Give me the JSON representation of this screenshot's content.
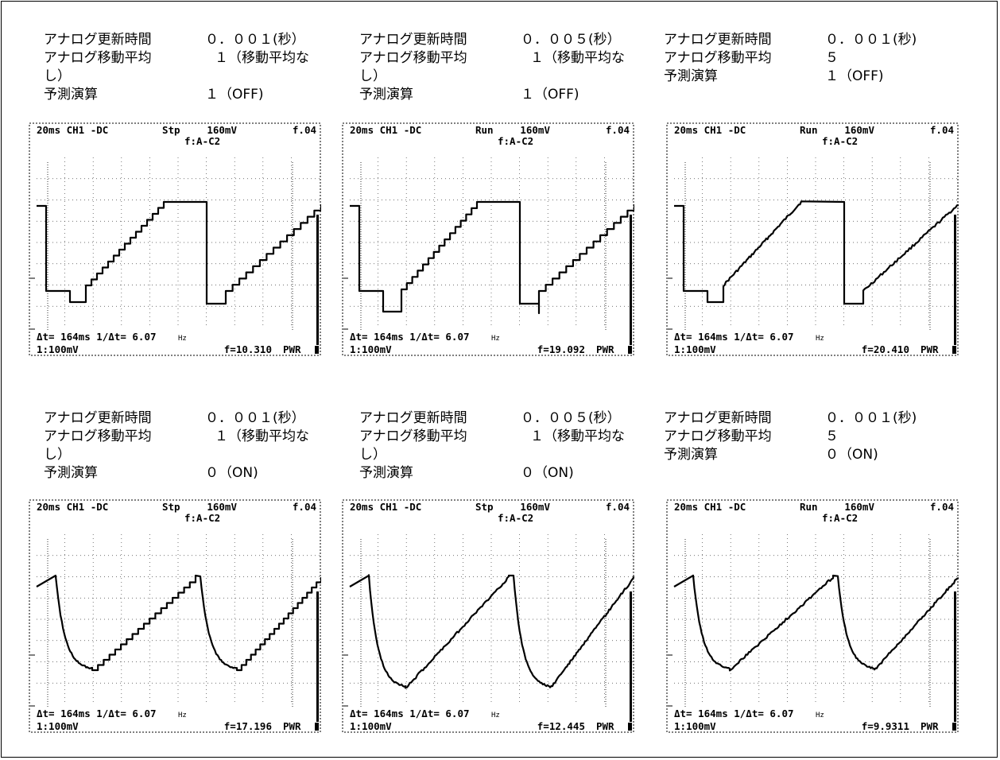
{
  "rows": [
    {
      "panels": [
        {
          "text": {
            "l1": "アナログ更新時間",
            "v1": "０．００１(秒）",
            "l2": "アナログ移動平均",
            "v2": "１（移動平均な",
            "l2b": "し）",
            "l3": "予測演算",
            "v3": "１（OFF)"
          },
          "scope": {
            "h1": "20ms CH1 -DC",
            "mode": "Stp",
            "volt": "160mV",
            "trig": "f.04",
            "h2": "f:A-C2",
            "meas": "Δt=  164ms 1/Δt= 6.07",
            "hz": "Hz",
            "ch": "1:100mV",
            "freq": "f=10.310",
            "pwr": "PWR"
          }
        },
        {
          "text": {
            "l1": "アナログ更新時間",
            "v1": "０．００５(秒）",
            "l2": "アナログ移動平均",
            "v2": "１（移動平均な",
            "l2b": "し）",
            "l3": "予測演算",
            "v3": "１（OFF)"
          },
          "scope": {
            "h1": "20ms CH1 -DC",
            "mode": "Run",
            "volt": "160mV",
            "trig": "f.04",
            "h2": "f:A-C2",
            "meas": "Δt=  164ms 1/Δt= 6.07",
            "hz": "Hz",
            "ch": "1:100mV",
            "freq": "f=19.092",
            "pwr": "PWR"
          }
        },
        {
          "text": {
            "l1": "アナログ更新時間",
            "v1": "０．００１(秒)",
            "l2": "アナログ移動平均",
            "v2": "５",
            "l2b": "",
            "l3": "予測演算",
            "v3": "１（OFF)"
          },
          "scope": {
            "h1": "20ms CH1 -DC",
            "mode": "Run",
            "volt": "160mV",
            "trig": "f.04",
            "h2": "f:A-C2",
            "meas": "Δt=  164ms 1/Δt= 6.07",
            "hz": "Hz",
            "ch": "1:100mV",
            "freq": "f=20.410",
            "pwr": "PWR"
          }
        }
      ]
    },
    {
      "panels": [
        {
          "text": {
            "l1": "アナログ更新時間",
            "v1": "０．００１(秒）",
            "l2": "アナログ移動平均",
            "v2": "１（移動平均な",
            "l2b": "し）",
            "l3": "予測演算",
            "v3": "０（ON)"
          },
          "scope": {
            "h1": "20ms CH1 -DC",
            "mode": "Stp",
            "volt": "160mV",
            "trig": "f.04",
            "h2": "f:A-C2",
            "meas": "Δt=  164ms 1/Δt= 6.07",
            "hz": "Hz",
            "ch": "1:100mV",
            "freq": "f=17.196",
            "pwr": "PWR"
          }
        },
        {
          "text": {
            "l1": "アナログ更新時間",
            "v1": "０．００５(秒）",
            "l2": "アナログ移動平均",
            "v2": "１（移動平均な",
            "l2b": "し）",
            "l3": "予測演算",
            "v3": "０（ON)"
          },
          "scope": {
            "h1": "20ms CH1 -DC",
            "mode": "Stp",
            "volt": "160mV",
            "trig": "f.04",
            "h2": "f:A-C2",
            "meas": "Δt=  164ms 1/Δt= 6.07",
            "hz": "Hz",
            "ch": "1:100mV",
            "freq": "f=12.445",
            "pwr": "PWR"
          }
        },
        {
          "text": {
            "l1": "アナログ更新時間",
            "v1": "０．００１(秒)",
            "l2": "アナログ移動平均",
            "v2": "５",
            "l2b": "",
            "l3": "予測演算",
            "v3": "０（ON)"
          },
          "scope": {
            "h1": "20ms CH1 -DC",
            "mode": "Run",
            "volt": "160mV",
            "trig": "f.04",
            "h2": "f:A-C2",
            "meas": "Δt=  164ms 1/Δt= 6.07",
            "hz": "Hz",
            "ch": "1:100mV",
            "freq": "f=9.9311",
            "pwr": "PWR"
          }
        }
      ]
    }
  ]
}
